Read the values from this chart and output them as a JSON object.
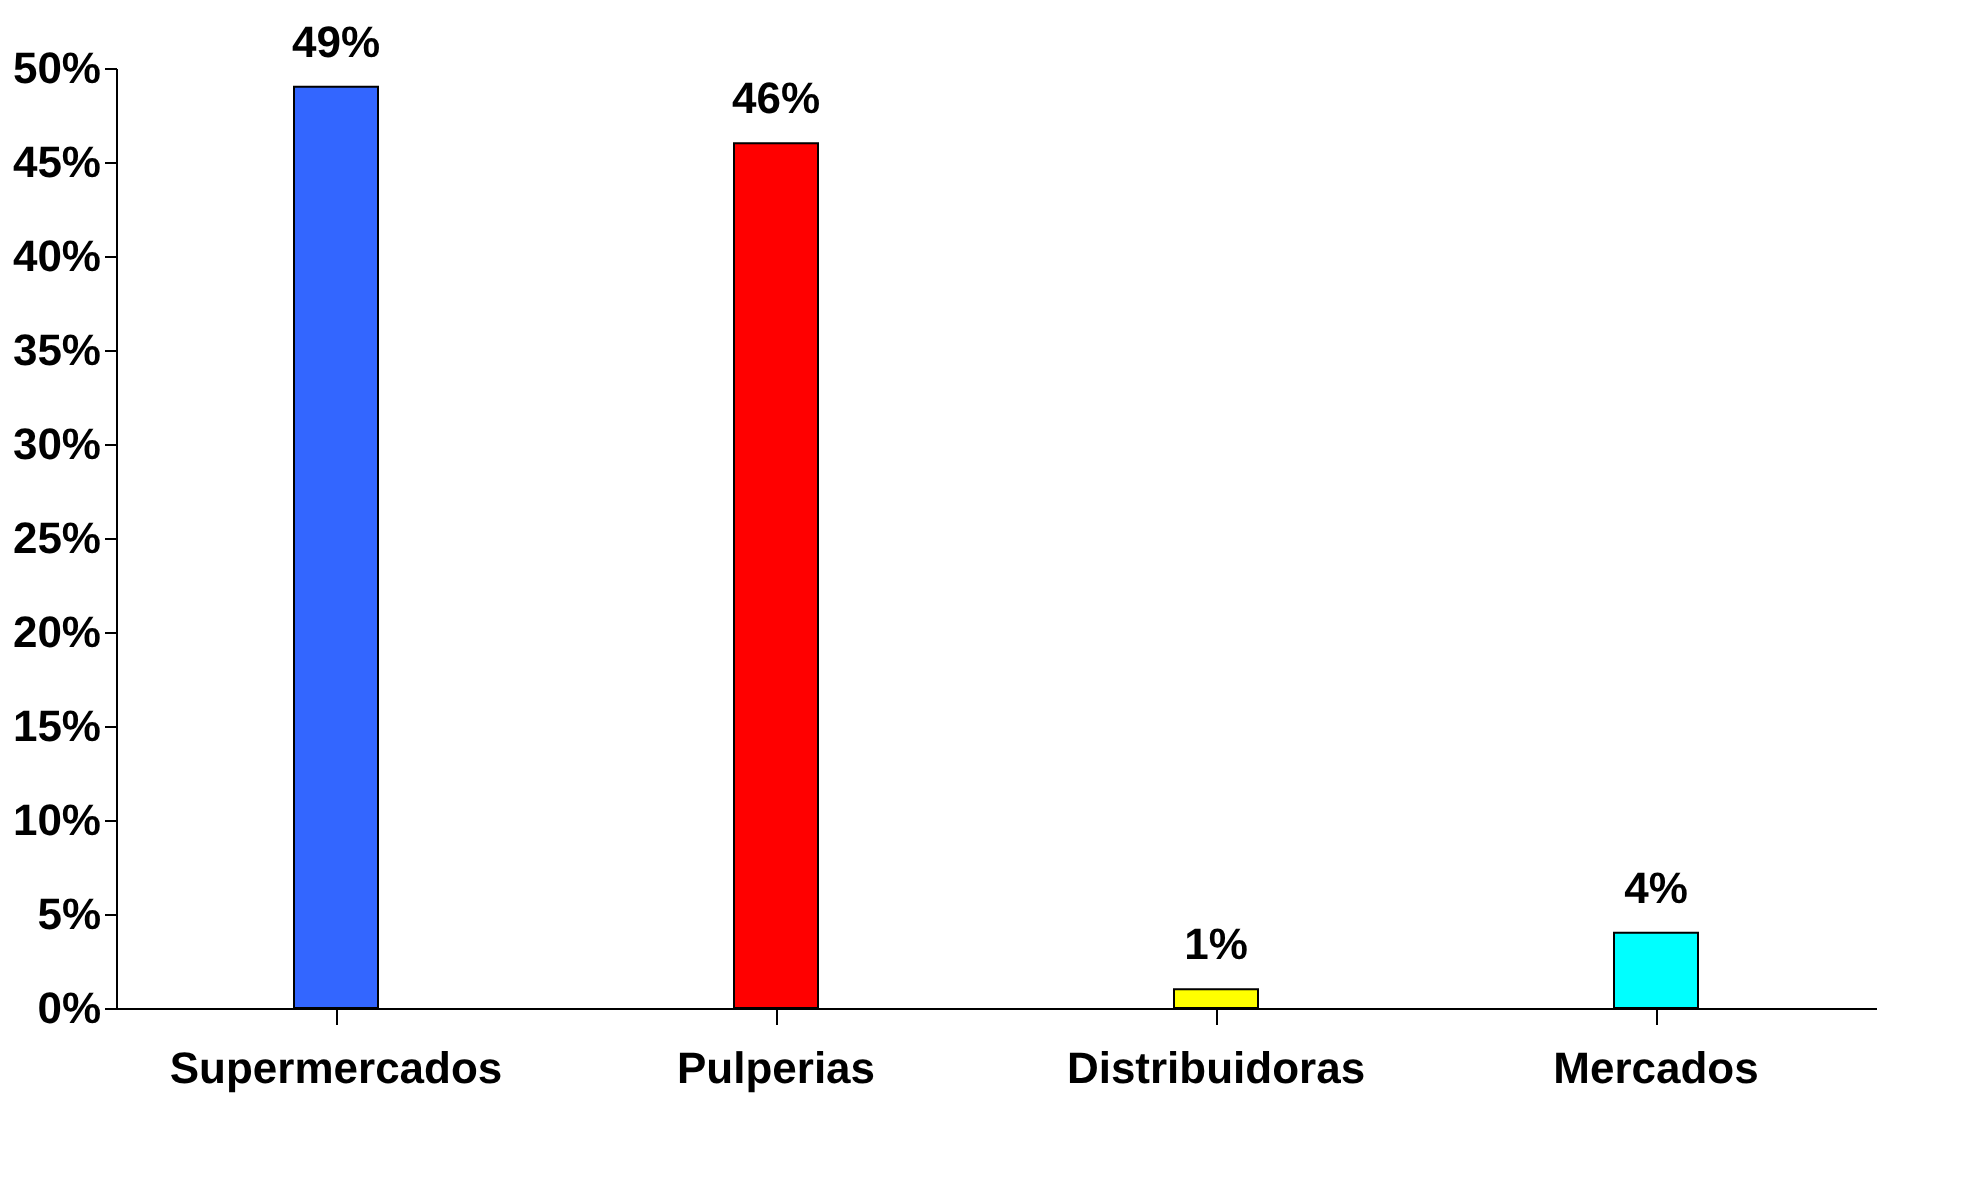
{
  "chart_data": {
    "type": "bar",
    "categories": [
      "Supermercados",
      "Pulperias",
      "Distribuidoras",
      "Mercados"
    ],
    "values": [
      49,
      46,
      1,
      4
    ],
    "colors": [
      "#3366ff",
      "#ff0000",
      "#ffff00",
      "#00ffff"
    ],
    "value_labels": [
      "49%",
      "46%",
      "1%",
      "4%"
    ],
    "ylim": [
      0,
      50
    ],
    "yticks": [
      {
        "value": 0,
        "label": "0%"
      },
      {
        "value": 5,
        "label": "5%"
      },
      {
        "value": 10,
        "label": "10%"
      },
      {
        "value": 15,
        "label": "15%"
      },
      {
        "value": 20,
        "label": "20%"
      },
      {
        "value": 25,
        "label": "25%"
      },
      {
        "value": 30,
        "label": "30%"
      },
      {
        "value": 35,
        "label": "35%"
      },
      {
        "value": 40,
        "label": "40%"
      },
      {
        "value": 45,
        "label": "45%"
      },
      {
        "value": 50,
        "label": "50%"
      }
    ],
    "grid": false
  }
}
